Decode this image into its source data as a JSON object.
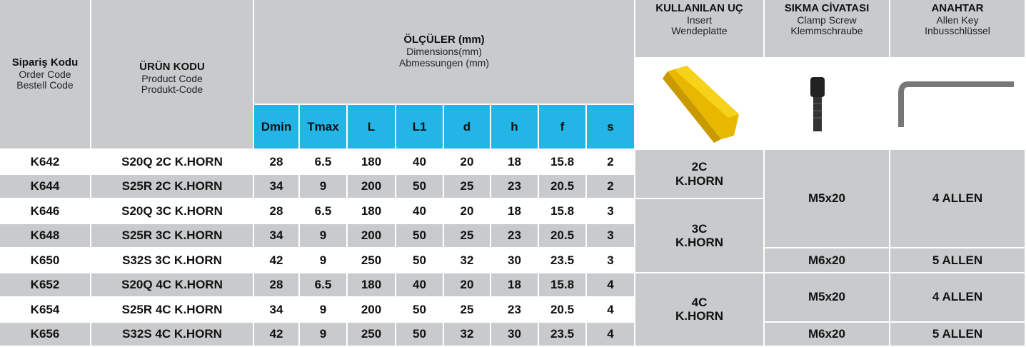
{
  "header": {
    "order_code": [
      "Sipariş Kodu",
      "Order Code",
      "Bestell Code"
    ],
    "product_code": [
      "ÜRÜN KODU",
      "Product Code",
      "Produkt-Code"
    ],
    "dimensions": [
      "ÖLÇÜLER (mm)",
      "Dimensions(mm)",
      "Abmessungen (mm)"
    ],
    "dimension_columns": [
      "Dmin",
      "Tmax",
      "L",
      "L1",
      "d",
      "h",
      "f",
      "s"
    ],
    "insert": [
      "KULLANILAN UÇ",
      "Insert",
      "Wendeplatte"
    ],
    "clamp_screw": [
      "SIKMA CİVATASI",
      "Clamp Screw",
      "Klemmschraube"
    ],
    "allen_key": [
      "ANAHTAR",
      "Allen Key",
      "Inbusschlüssel"
    ]
  },
  "rows": [
    [
      "K642",
      "S20Q 2C K.HORN",
      28,
      6.5,
      180,
      40,
      20,
      18,
      15.8,
      2
    ],
    [
      "K644",
      "S25R 2C K.HORN",
      34,
      9,
      200,
      50,
      25,
      23,
      20.5,
      2
    ],
    [
      "K646",
      "S20Q 3C K.HORN",
      28,
      6.5,
      180,
      40,
      20,
      18,
      15.8,
      3
    ],
    [
      "K648",
      "S25R 3C K.HORN",
      34,
      9,
      200,
      50,
      25,
      23,
      20.5,
      3
    ],
    [
      "K650",
      "S32S 3C K.HORN",
      42,
      9,
      250,
      50,
      32,
      30,
      23.5,
      3
    ],
    [
      "K652",
      "S20Q 4C K.HORN",
      28,
      6.5,
      180,
      40,
      20,
      18,
      15.8,
      4
    ],
    [
      "K654",
      "S25R 4C K.HORN",
      34,
      9,
      200,
      50,
      25,
      23,
      20.5,
      4
    ],
    [
      "K656",
      "S32S 4C K.HORN",
      42,
      9,
      250,
      50,
      32,
      30,
      23.5,
      4
    ]
  ],
  "inserts": [
    [
      "2C",
      "K.HORN"
    ],
    [
      "3C",
      "K.HORN"
    ],
    [
      "4C",
      "K.HORN"
    ]
  ],
  "clamp_screws": [
    "M5x20",
    "M6x20",
    "M5x20",
    "M6x20"
  ],
  "allen_keys": [
    "4 ALLEN",
    "5 ALLEN",
    "4 ALLEN",
    "5 ALLEN"
  ]
}
